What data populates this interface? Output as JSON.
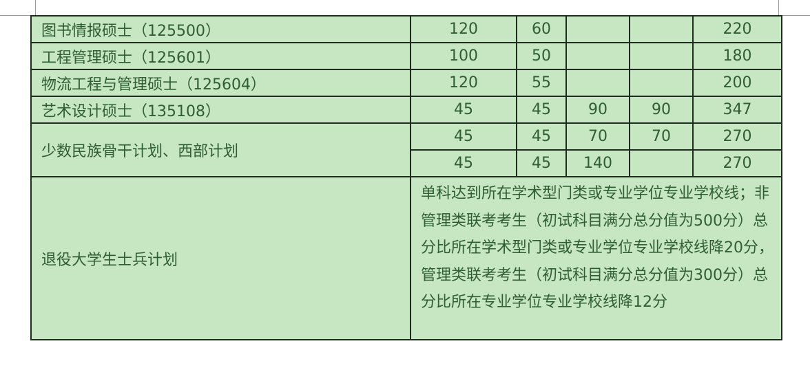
{
  "table": {
    "rows": [
      {
        "name": "图书情报硕士（125500）",
        "values": [
          "120",
          "60",
          "",
          "",
          "220"
        ]
      },
      {
        "name": "工程管理硕士（125601）",
        "values": [
          "100",
          "50",
          "",
          "",
          "180"
        ]
      },
      {
        "name": "物流工程与管理硕士（125604）",
        "values": [
          "120",
          "55",
          "",
          "",
          "200"
        ]
      },
      {
        "name": "艺术设计硕士（135108）",
        "values": [
          "45",
          "45",
          "90",
          "90",
          "347"
        ]
      }
    ],
    "minority": {
      "name": "少数民族骨干计划、西部计划",
      "rows": [
        [
          "45",
          "45",
          "70",
          "70",
          "270"
        ],
        [
          "45",
          "45",
          "140",
          "",
          "270"
        ]
      ]
    },
    "veteran": {
      "name": "退役大学生士兵计划",
      "note": "单科达到所在学术型门类或专业学位专业学校线；非管理类联考考生（初试科目满分总分值为500分）总分比所在学术型门类或专业学位专业学校线降20分，管理类联考考生（初试科目满分总分值为300分）总分比所在专业学位专业学校线降12分"
    }
  }
}
